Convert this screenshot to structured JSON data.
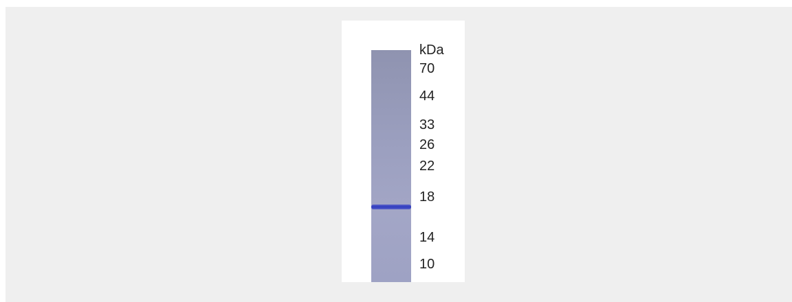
{
  "gel": {
    "unit_label": "kDa",
    "markers": [
      "70",
      "44",
      "33",
      "26",
      "22",
      "18",
      "14",
      "10"
    ]
  }
}
